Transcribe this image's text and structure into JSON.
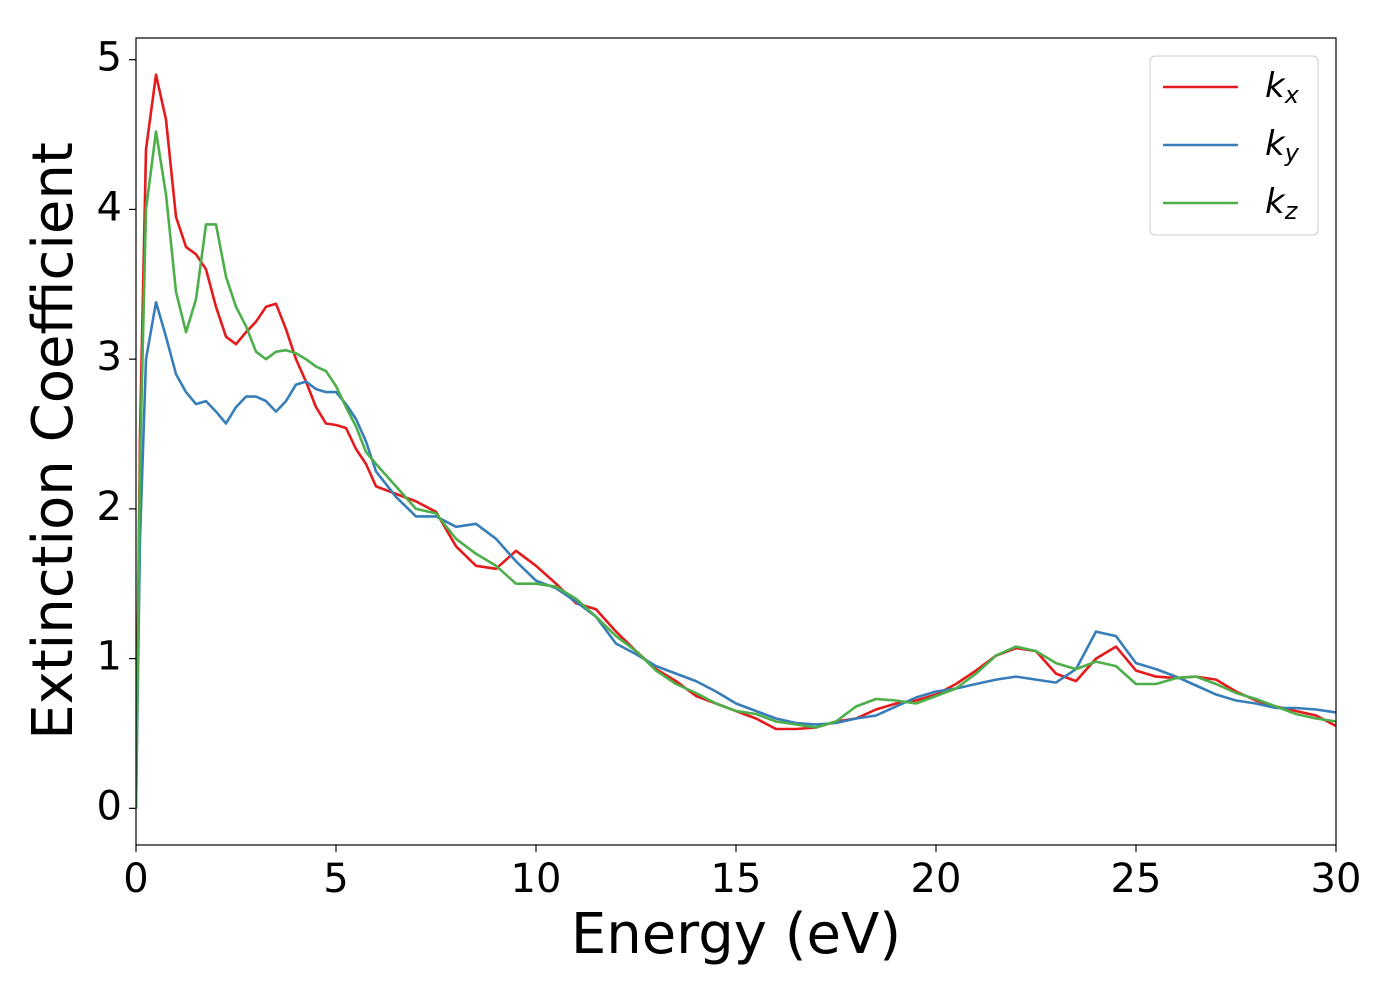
{
  "chart_data": {
    "type": "line",
    "xlabel": "Energy (eV)",
    "ylabel": "Extinction Coefficient",
    "x": [
      0,
      0.1,
      0.25,
      0.5,
      0.75,
      1,
      1.25,
      1.5,
      1.75,
      2,
      2.25,
      2.5,
      2.75,
      3,
      3.25,
      3.5,
      3.75,
      4,
      4.25,
      4.5,
      4.75,
      5,
      5.25,
      5.5,
      5.75,
      6,
      6.5,
      7,
      7.5,
      8,
      8.5,
      9,
      9.5,
      10,
      10.5,
      11,
      11.5,
      12,
      12.5,
      13,
      13.5,
      14,
      14.5,
      15,
      15.5,
      16,
      16.5,
      17,
      17.5,
      18,
      18.5,
      19,
      19.5,
      20,
      20.5,
      21,
      21.5,
      22,
      22.5,
      23,
      23.5,
      24,
      24.5,
      25,
      25.5,
      26,
      26.5,
      27,
      27.5,
      28,
      28.5,
      29,
      29.5,
      30
    ],
    "series": [
      {
        "name": "k_x",
        "color": "#e41a1c",
        "values": [
          0,
          2.5,
          4.4,
          4.9,
          4.6,
          3.95,
          3.75,
          3.7,
          3.6,
          3.35,
          3.15,
          3.1,
          3.18,
          3.25,
          3.35,
          3.37,
          3.2,
          3.0,
          2.85,
          2.68,
          2.57,
          2.56,
          2.54,
          2.4,
          2.3,
          2.15,
          2.1,
          2.05,
          1.98,
          1.75,
          1.62,
          1.6,
          1.72,
          1.62,
          1.5,
          1.37,
          1.33,
          1.18,
          1.05,
          0.93,
          0.85,
          0.75,
          0.7,
          0.65,
          0.6,
          0.53,
          0.53,
          0.54,
          0.58,
          0.6,
          0.66,
          0.7,
          0.72,
          0.76,
          0.83,
          0.92,
          1.02,
          1.07,
          1.05,
          0.9,
          0.85,
          1.0,
          1.08,
          0.92,
          0.88,
          0.87,
          0.88,
          0.86,
          0.78,
          0.72,
          0.68,
          0.65,
          0.62,
          0.55
        ]
      },
      {
        "name": "k_y",
        "color": "#377eb8",
        "values": [
          0,
          1.8,
          3.0,
          3.38,
          3.15,
          2.9,
          2.78,
          2.7,
          2.72,
          2.65,
          2.57,
          2.68,
          2.75,
          2.75,
          2.72,
          2.65,
          2.72,
          2.83,
          2.85,
          2.8,
          2.78,
          2.78,
          2.7,
          2.6,
          2.45,
          2.25,
          2.08,
          1.95,
          1.95,
          1.88,
          1.9,
          1.8,
          1.65,
          1.52,
          1.47,
          1.38,
          1.28,
          1.1,
          1.03,
          0.95,
          0.9,
          0.85,
          0.78,
          0.7,
          0.65,
          0.6,
          0.57,
          0.56,
          0.57,
          0.6,
          0.62,
          0.68,
          0.74,
          0.78,
          0.8,
          0.83,
          0.86,
          0.88,
          0.86,
          0.84,
          0.93,
          1.18,
          1.15,
          0.97,
          0.93,
          0.88,
          0.82,
          0.76,
          0.72,
          0.7,
          0.67,
          0.67,
          0.66,
          0.64
        ]
      },
      {
        "name": "k_z",
        "color": "#4daf4a",
        "values": [
          0,
          2.3,
          4.0,
          4.52,
          4.1,
          3.45,
          3.18,
          3.4,
          3.9,
          3.9,
          3.55,
          3.35,
          3.22,
          3.05,
          3.0,
          3.05,
          3.06,
          3.04,
          3.0,
          2.95,
          2.92,
          2.82,
          2.68,
          2.55,
          2.38,
          2.3,
          2.15,
          2.0,
          1.97,
          1.8,
          1.7,
          1.62,
          1.5,
          1.5,
          1.48,
          1.4,
          1.28,
          1.15,
          1.05,
          0.92,
          0.83,
          0.77,
          0.7,
          0.65,
          0.63,
          0.58,
          0.56,
          0.54,
          0.58,
          0.68,
          0.73,
          0.72,
          0.7,
          0.75,
          0.8,
          0.9,
          1.02,
          1.08,
          1.05,
          0.97,
          0.93,
          0.98,
          0.95,
          0.83,
          0.83,
          0.87,
          0.88,
          0.83,
          0.77,
          0.73,
          0.68,
          0.63,
          0.6,
          0.58
        ]
      }
    ],
    "xlim": [
      0,
      30
    ],
    "xticks": [
      0,
      5,
      10,
      15,
      20,
      25,
      30
    ],
    "ylim": [
      -0.245,
      5.145
    ],
    "yticks": [
      0,
      1,
      2,
      3,
      4,
      5
    ],
    "grid": false,
    "legend": "upper right"
  }
}
